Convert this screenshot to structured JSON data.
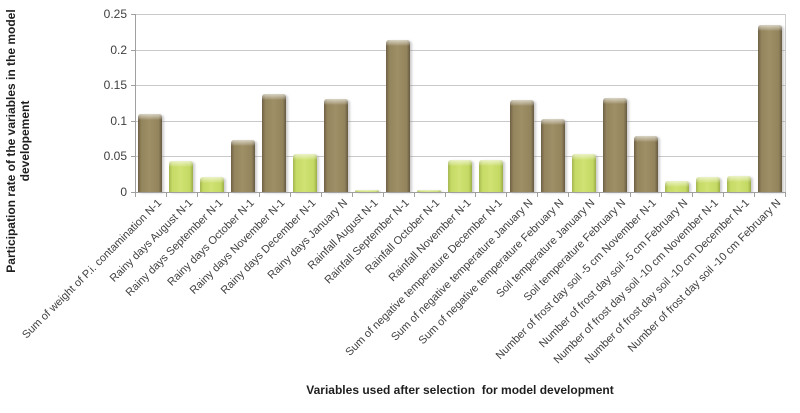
{
  "chart_data": {
    "type": "bar",
    "title": "",
    "xlabel": "Variables used after selection  for model development",
    "ylabel": "Participation rate of the variables in the model developement",
    "ylabel_lines": [
      "Participation rate of the variables in the model",
      "developement"
    ],
    "ylim": [
      0,
      0.25
    ],
    "yticks": [
      0,
      0.05,
      0.1,
      0.15,
      0.2,
      0.25
    ],
    "ytick_labels": [
      "0",
      "0.05",
      "0.1",
      "0.15",
      "0.2",
      "0.25"
    ],
    "grid": true,
    "legend": "none",
    "categories": [
      "Sum of weight of P.i. contamination N-1",
      "Rainy days August N-1",
      "Rainy days September N-1",
      "Rainy days October N-1",
      "Rainy days November N-1",
      "Rainy days December N-1",
      "Rainy days January N",
      "Rainfall August N-1",
      "Rainfall September N-1",
      "Rainfall October N-1",
      "Rainfall November N-1",
      "Sum of negative temperature December N-1",
      "Sum of negative temperature January N",
      "Sum of negative temperature February N",
      "Soil temperature January N",
      "Soil temperature February N",
      "Number of frost day soil -5 cm November N-1",
      "Number of frost day soil -5 cm February N",
      "Number of frost day soil -10 cm November N-1",
      "Number of frost day soil -10 cm December N-1",
      "Number of frost day soil -10 cm February N"
    ],
    "values": [
      0.109,
      0.043,
      0.021,
      0.073,
      0.137,
      0.053,
      0.131,
      0.003,
      0.213,
      0.003,
      0.045,
      0.045,
      0.129,
      0.103,
      0.053,
      0.132,
      0.078,
      0.016,
      0.021,
      0.023,
      0.235
    ],
    "bar_colors": [
      "brown",
      "green",
      "green",
      "brown",
      "brown",
      "green",
      "brown",
      "green",
      "brown",
      "green",
      "green",
      "green",
      "brown",
      "brown",
      "green",
      "brown",
      "brown",
      "green",
      "green",
      "green",
      "brown"
    ],
    "palette": {
      "brown": "#8f8058",
      "green": "#c9dd6b",
      "gridline": "#c9c9c9",
      "axis": "#a0a0a0",
      "tick_text": "#3f3f3f",
      "title_text": "#1f1f1f"
    }
  }
}
